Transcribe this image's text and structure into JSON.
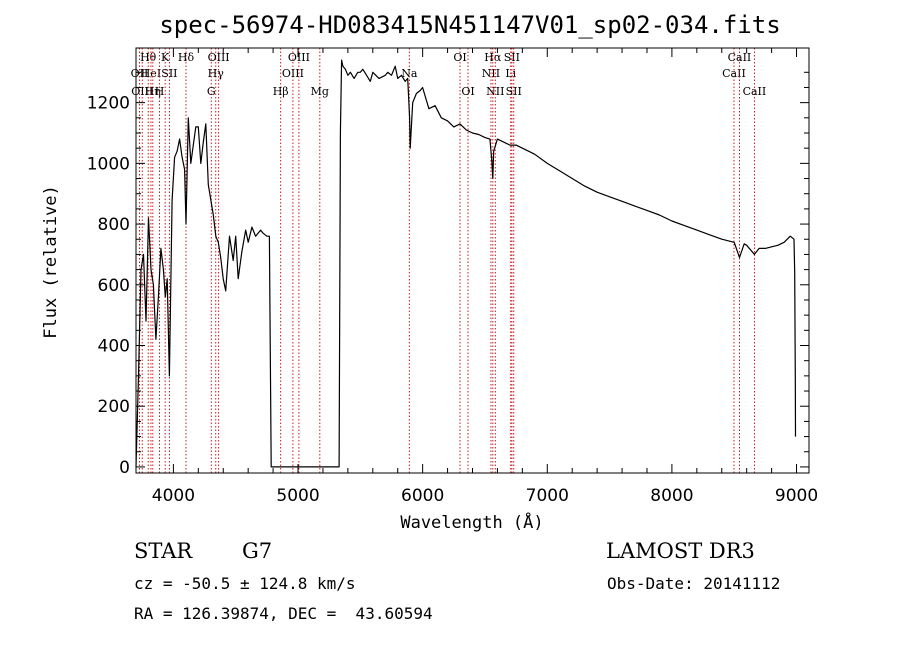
{
  "chart_data": {
    "type": "line",
    "title": "spec-56974-HD083415N451147V01_sp02-034.fits",
    "xlabel": "Wavelength (Å)",
    "ylabel": "Flux (relative)",
    "xlim": [
      3700,
      9100
    ],
    "ylim": [
      -20,
      1380
    ],
    "xticks": [
      4000,
      5000,
      6000,
      7000,
      8000,
      9000
    ],
    "yticks": [
      0,
      200,
      400,
      600,
      800,
      1000,
      1200
    ],
    "series": [
      {
        "x": [
          3700,
          3720,
          3740,
          3760,
          3780,
          3800,
          3820,
          3840,
          3860,
          3880,
          3900,
          3920,
          3935,
          3950,
          3968,
          3990,
          4010,
          4030,
          4050,
          4070,
          4090,
          4101,
          4120,
          4140,
          4160,
          4180,
          4200,
          4220,
          4240,
          4260,
          4280,
          4300,
          4320,
          4340,
          4360,
          4380,
          4400,
          4420,
          4450,
          4480,
          4500,
          4520,
          4550,
          4580,
          4600,
          4630,
          4660,
          4700,
          4720,
          4750,
          4770,
          4775,
          4780,
          4785,
          5330,
          5340,
          5350,
          5360,
          5380,
          5400,
          5420,
          5450,
          5480,
          5500,
          5520,
          5550,
          5580,
          5600,
          5650,
          5700,
          5720,
          5750,
          5780,
          5800,
          5830,
          5860,
          5880,
          5895,
          5900,
          5920,
          5950,
          5980,
          6000,
          6050,
          6100,
          6150,
          6200,
          6250,
          6300,
          6350,
          6400,
          6450,
          6500,
          6540,
          6555,
          6563,
          6570,
          6600,
          6650,
          6700,
          6750,
          6800,
          6850,
          6900,
          7000,
          7100,
          7200,
          7300,
          7400,
          7500,
          7600,
          7700,
          7800,
          7900,
          8000,
          8100,
          8200,
          8300,
          8400,
          8500,
          8542,
          8580,
          8600,
          8662,
          8700,
          8750,
          8800,
          8850,
          8900,
          8950,
          8980,
          8985,
          8990,
          8992
        ],
        "y": [
          0,
          300,
          650,
          700,
          480,
          820,
          650,
          600,
          420,
          560,
          720,
          650,
          560,
          620,
          300,
          880,
          1020,
          1040,
          1080,
          1020,
          980,
          800,
          1150,
          1000,
          1060,
          1120,
          1120,
          1000,
          1070,
          1130,
          930,
          880,
          830,
          760,
          740,
          690,
          620,
          580,
          760,
          680,
          760,
          620,
          710,
          780,
          740,
          790,
          760,
          780,
          770,
          760,
          760,
          500,
          250,
          0,
          0,
          1100,
          1340,
          1320,
          1310,
          1290,
          1300,
          1280,
          1300,
          1300,
          1310,
          1290,
          1270,
          1300,
          1280,
          1290,
          1300,
          1290,
          1320,
          1280,
          1290,
          1270,
          1280,
          1150,
          1050,
          1200,
          1230,
          1240,
          1250,
          1180,
          1190,
          1150,
          1140,
          1120,
          1130,
          1110,
          1100,
          1095,
          1085,
          1080,
          1010,
          950,
          1040,
          1080,
          1070,
          1060,
          1060,
          1050,
          1040,
          1030,
          1000,
          975,
          950,
          925,
          905,
          890,
          875,
          860,
          845,
          830,
          810,
          795,
          780,
          765,
          750,
          740,
          690,
          735,
          730,
          700,
          720,
          720,
          725,
          730,
          740,
          760,
          750,
          640,
          300,
          100
        ]
      }
    ],
    "line_markers": [
      {
        "wl": 3728,
        "label": "OII",
        "row": 2
      },
      {
        "wl": 3750,
        "label": "OIII",
        "row": 3
      },
      {
        "wl": 3798,
        "label": "Hθ",
        "row": 1
      },
      {
        "wl": 3820,
        "label": "HeI",
        "row": 2
      },
      {
        "wl": 3835,
        "label": "Hη",
        "row": 3
      },
      {
        "wl": 3889,
        "label": "H",
        "row": 3
      },
      {
        "wl": 3934,
        "label": "K",
        "row": 1
      },
      {
        "wl": 3968,
        "label": "SII",
        "row": 2
      },
      {
        "wl": 4101,
        "label": "Hδ",
        "row": 1
      },
      {
        "wl": 4304,
        "label": "G",
        "row": 3
      },
      {
        "wl": 4340,
        "label": "Hγ",
        "row": 2
      },
      {
        "wl": 4363,
        "label": "OIII",
        "row": 1
      },
      {
        "wl": 4861,
        "label": "Hβ",
        "row": 3
      },
      {
        "wl": 4959,
        "label": "OIII",
        "row": 2
      },
      {
        "wl": 5007,
        "label": "OIII",
        "row": 1
      },
      {
        "wl": 5175,
        "label": "Mg",
        "row": 3
      },
      {
        "wl": 5893,
        "label": "Na",
        "row": 2
      },
      {
        "wl": 6300,
        "label": "OI",
        "row": 1
      },
      {
        "wl": 6364,
        "label": "OI",
        "row": 3
      },
      {
        "wl": 6548,
        "label": "NII",
        "row": 2
      },
      {
        "wl": 6563,
        "label": "Hα",
        "row": 1
      },
      {
        "wl": 6583,
        "label": "NII",
        "row": 3
      },
      {
        "wl": 6707,
        "label": "Li",
        "row": 2
      },
      {
        "wl": 6716,
        "label": "SII",
        "row": 1
      },
      {
        "wl": 6731,
        "label": "SII",
        "row": 3
      },
      {
        "wl": 8498,
        "label": "CaII",
        "row": 2
      },
      {
        "wl": 8542,
        "label": "CaII",
        "row": 1
      },
      {
        "wl": 8662,
        "label": "CaII",
        "row": 3
      }
    ],
    "grid": false,
    "legend": "none"
  },
  "info": {
    "object_class": "STAR",
    "subclass": "G7",
    "survey": "LAMOST DR3",
    "velocity": "cz = -50.5 ± 124.8 km/s",
    "obs_date": "Obs-Date: 20141112",
    "coords": "RA = 126.39874, DEC =  43.60594"
  }
}
